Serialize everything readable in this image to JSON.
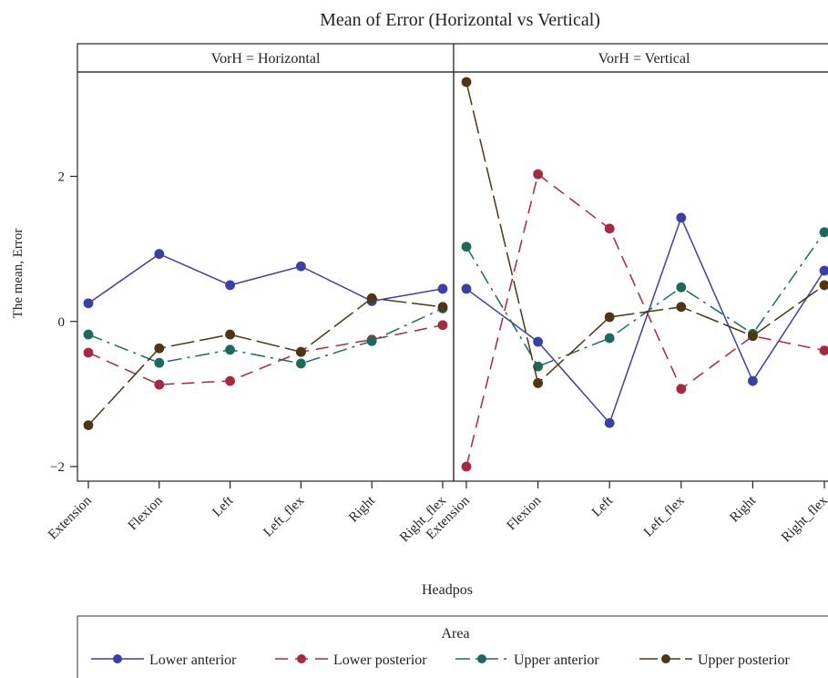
{
  "chart_data": {
    "type": "line",
    "title": "Mean of Error (Horizontal vs Vertical)",
    "xlabel": "Headpos",
    "ylabel": "The mean, Error",
    "categories": [
      "Extension",
      "Flexion",
      "Left",
      "Left_flex",
      "Right",
      "Right_flex"
    ],
    "y_ticks": [
      -2,
      0,
      2
    ],
    "y_tick_labels": [
      "−2",
      "0",
      "2"
    ],
    "ylim": [
      -2.2,
      3.5
    ],
    "legend": {
      "title": "Area",
      "position": "bottom"
    },
    "series_styles": [
      {
        "name": "Lower anterior",
        "color": "#3b3fa8",
        "dash": ""
      },
      {
        "name": "Lower posterior",
        "color": "#a8283f",
        "dash": "14 8"
      },
      {
        "name": "Upper anterior",
        "color": "#1a6b5e",
        "dash": "16 6 3 6"
      },
      {
        "name": "Upper posterior",
        "color": "#4f3511",
        "dash": "26 6"
      }
    ],
    "panels": [
      {
        "label": "VorH = Horizontal",
        "series": [
          {
            "name": "Lower anterior",
            "values": [
              0.25,
              0.93,
              0.5,
              0.76,
              0.28,
              0.45
            ]
          },
          {
            "name": "Lower posterior",
            "values": [
              -0.43,
              -0.87,
              -0.82,
              -0.42,
              -0.25,
              -0.05
            ]
          },
          {
            "name": "Upper anterior",
            "values": [
              -0.18,
              -0.57,
              -0.39,
              -0.58,
              -0.27,
              0.18
            ]
          },
          {
            "name": "Upper posterior",
            "values": [
              -1.43,
              -0.37,
              -0.18,
              -0.42,
              0.32,
              0.2
            ]
          }
        ]
      },
      {
        "label": "VorH = Vertical",
        "series": [
          {
            "name": "Lower anterior",
            "values": [
              0.45,
              -0.28,
              -1.4,
              1.43,
              -0.82,
              0.7
            ]
          },
          {
            "name": "Lower posterior",
            "values": [
              -2.0,
              2.03,
              1.28,
              -0.93,
              -0.2,
              -0.4
            ]
          },
          {
            "name": "Upper anterior",
            "values": [
              1.03,
              -0.62,
              -0.23,
              0.47,
              -0.17,
              1.23
            ]
          },
          {
            "name": "Upper posterior",
            "values": [
              3.3,
              -0.85,
              0.06,
              0.2,
              -0.2,
              0.5
            ]
          }
        ]
      }
    ]
  }
}
